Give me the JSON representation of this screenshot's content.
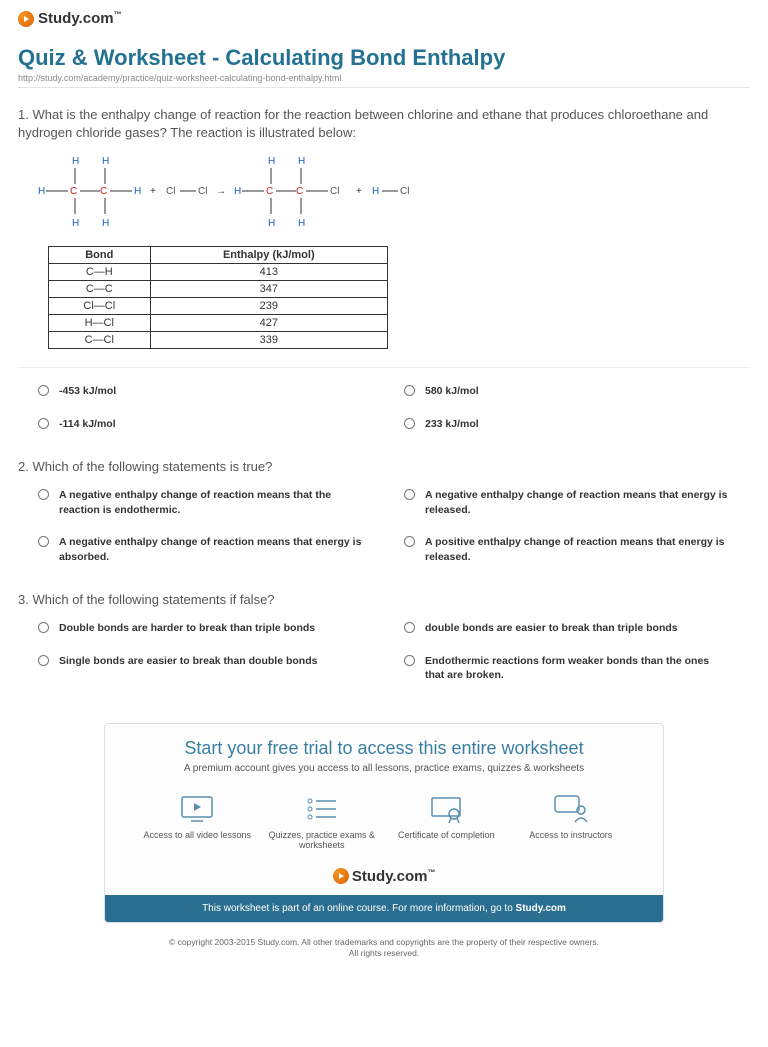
{
  "brand": {
    "name": "Study.com",
    "tm": "™"
  },
  "title": "Quiz & Worksheet - Calculating Bond Enthalpy",
  "url": "http://study.com/academy/practice/quiz-worksheet-calculating-bond-enthalpy.html",
  "questions": [
    {
      "num": "1.",
      "text": "What is the enthalpy change of reaction for the reaction between chlorine and ethane that produces chloroethane and hydrogen chloride gases? The reaction is illustrated below:",
      "table": {
        "columns": [
          "Bond",
          "Enthalpy (kJ/mol)"
        ],
        "rows": [
          [
            "C—H",
            "413"
          ],
          [
            "C—C",
            "347"
          ],
          [
            "Cl—Cl",
            "239"
          ],
          [
            "H—Cl",
            "427"
          ],
          [
            "C—Cl",
            "339"
          ]
        ]
      },
      "options": [
        "-453 kJ/mol",
        "580 kJ/mol",
        "-114 kJ/mol",
        "233 kJ/mol"
      ]
    },
    {
      "num": "2.",
      "text": "Which of the following statements is true?",
      "options": [
        "A negative enthalpy change of reaction means that the reaction is endothermic.",
        "A negative enthalpy change of reaction means that energy is released.",
        "A negative enthalpy change of reaction means that energy is absorbed.",
        "A positive enthalpy change of reaction means that energy is released."
      ]
    },
    {
      "num": "3.",
      "text": "Which of the following statements if false?",
      "options": [
        "Double bonds are harder to break than triple bonds",
        "double bonds are easier to break than triple bonds",
        "Single bonds are easier to break than double bonds",
        "Endothermic reactions form weaker bonds than the ones that are broken."
      ]
    }
  ],
  "reaction": {
    "atoms": {
      "H_color": "#1a5cc4",
      "C_color": "#d11a1a",
      "Cl_color": "#555555",
      "sym_color": "#333333"
    },
    "font_size": 10
  },
  "promo": {
    "headline": "Start your free trial to access this entire worksheet",
    "sub": "A premium account gives you access to all lessons, practice exams, quizzes & worksheets",
    "items": [
      {
        "icon": "video",
        "label": "Access to all video lessons"
      },
      {
        "icon": "list",
        "label": "Quizzes, practice exams & worksheets"
      },
      {
        "icon": "cert",
        "label": "Certificate of completion"
      },
      {
        "icon": "people",
        "label": "Access to instructors"
      }
    ],
    "bar_prefix": "This worksheet is part of an online course. For more information, go to ",
    "bar_link": "Study.com"
  },
  "copyright": "© copyright 2003-2015 Study.com. All other trademarks and copyrights are the property of their respective owners.\nAll rights reserved.",
  "colors": {
    "title": "#247291",
    "promo_bar": "#2b6f90",
    "icon_stroke": "#5a8fae"
  }
}
